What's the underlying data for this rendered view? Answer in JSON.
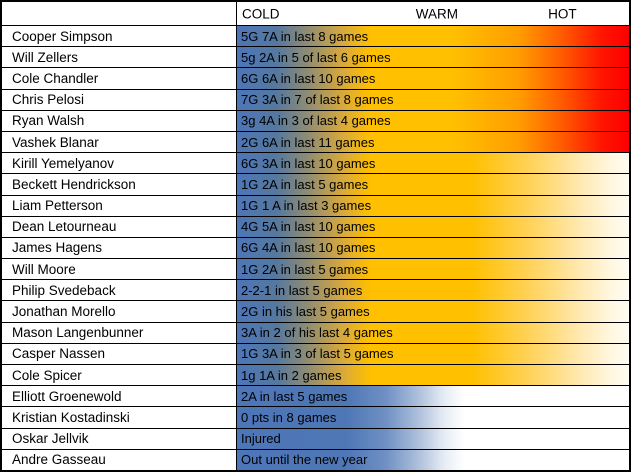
{
  "header": {
    "cold_label": "COLD",
    "warm_label": "WARM",
    "hot_label": "HOT"
  },
  "chart_data": {
    "type": "table",
    "columns": [
      "player",
      "recent_form",
      "heat_level"
    ],
    "heat_scale": [
      "COLD",
      "WARM",
      "HOT"
    ],
    "colors": {
      "cold_blue": "#4d76b8",
      "warm_gold": "#ffc000",
      "hot_red": "#ff0000",
      "border": "#000000"
    },
    "rows": [
      {
        "player": "Cooper Simpson",
        "form": "5G 7A in last 8 games",
        "heat": "hot"
      },
      {
        "player": "Will Zellers",
        "form": "5g 2A in 5 of last 6 games",
        "heat": "hot"
      },
      {
        "player": "Cole Chandler",
        "form": "6G 6A in last 10 games",
        "heat": "hot"
      },
      {
        "player": "Chris Pelosi",
        "form": "7G 3A in 7 of last 8 games",
        "heat": "hot"
      },
      {
        "player": "Ryan Walsh",
        "form": "3g 4A in 3 of last 4 games",
        "heat": "hot"
      },
      {
        "player": "Vashek Blanar",
        "form": "2G 6A in last 11 games",
        "heat": "hot"
      },
      {
        "player": "Kirill Yemelyanov",
        "form": "6G 3A in last 10 games",
        "heat": "warm"
      },
      {
        "player": "Beckett Hendrickson",
        "form": "1G 2A in last 5 games",
        "heat": "warm"
      },
      {
        "player": "Liam Petterson",
        "form": "1G 1 A in last 3 games",
        "heat": "warm"
      },
      {
        "player": "Dean Letourneau",
        "form": "4G 5A in last 10 games",
        "heat": "warm"
      },
      {
        "player": "James Hagens",
        "form": "6G 4A in last 10 games",
        "heat": "warm"
      },
      {
        "player": "Will Moore",
        "form": "1G 2A in last 5 games",
        "heat": "warm"
      },
      {
        "player": "Philip Svedeback",
        "form": "2-2-1 in last 5 games",
        "heat": "warm"
      },
      {
        "player": "Jonathan Morello",
        "form": "2G in his last 5 games",
        "heat": "warm"
      },
      {
        "player": "Mason Langenbunner",
        "form": "3A in 2 of his last 4 games",
        "heat": "warm"
      },
      {
        "player": "Casper Nassen",
        "form": "1G 3A in 3 of last 5 games",
        "heat": "warm"
      },
      {
        "player": "Cole Spicer",
        "form": "1g 1A in 2 games",
        "heat": "warm"
      },
      {
        "player": "Elliott Groenewold",
        "form": "2A in last 5 games",
        "heat": "cold"
      },
      {
        "player": "Kristian Kostadinski",
        "form": "0 pts in 8 games",
        "heat": "cold"
      },
      {
        "player": "Oskar Jellvik",
        "form": "Injured",
        "heat": "cold"
      },
      {
        "player": "Andre Gasseau",
        "form": "Out until the new year",
        "heat": "cold"
      }
    ]
  }
}
